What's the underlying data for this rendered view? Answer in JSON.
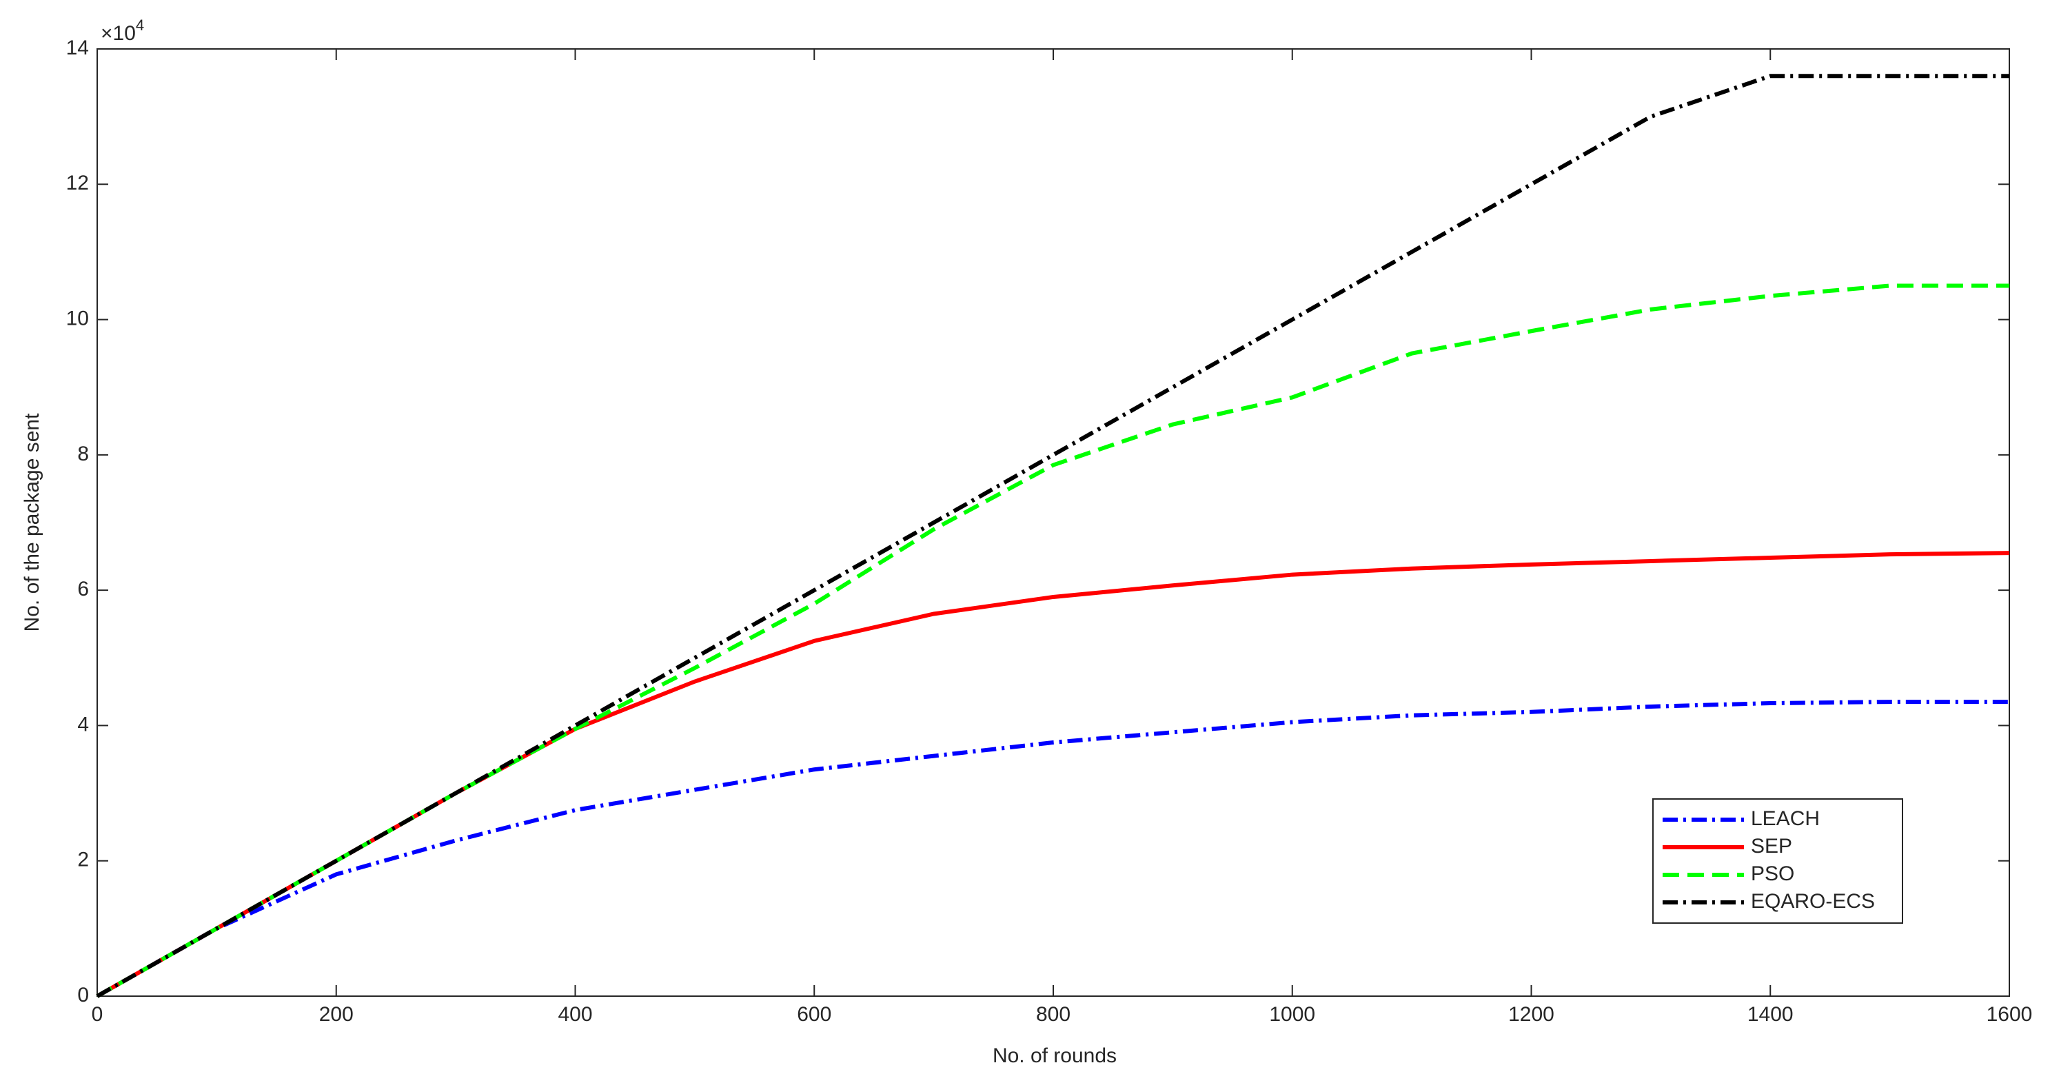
{
  "chart_data": {
    "type": "line",
    "x_label": "No. of rounds",
    "y_label": "No. of the package sent",
    "y_multiplier": {
      "base": "×10",
      "exponent": "4"
    },
    "x": [
      0,
      100,
      200,
      300,
      400,
      500,
      600,
      700,
      800,
      900,
      1000,
      1100,
      1200,
      1300,
      1400,
      1500,
      1600
    ],
    "series": [
      {
        "name": "LEACH",
        "color": "#0000ff",
        "dash": "dashdot",
        "values": [
          0,
          10000,
          18000,
          23000,
          27500,
          30500,
          33500,
          35500,
          37500,
          39000,
          40500,
          41500,
          42000,
          42800,
          43300,
          43500,
          43500
        ]
      },
      {
        "name": "SEP",
        "color": "#ff0000",
        "dash": "solid",
        "values": [
          0,
          10000,
          20000,
          30000,
          39500,
          46500,
          52500,
          56500,
          59000,
          60700,
          62300,
          63200,
          63800,
          64300,
          64800,
          65300,
          65500
        ]
      },
      {
        "name": "PSO",
        "color": "#00ff00",
        "dash": "dashed",
        "values": [
          0,
          10000,
          20000,
          30000,
          39500,
          48500,
          58000,
          69000,
          78500,
          84500,
          88500,
          95000,
          98300,
          101500,
          103500,
          105000,
          105000
        ]
      },
      {
        "name": "EQARO-ECS",
        "color": "#000000",
        "dash": "dashdot",
        "values": [
          0,
          10000,
          20000,
          30000,
          40000,
          50000,
          60000,
          70000,
          80000,
          90000,
          100000,
          110000,
          120000,
          130000,
          136000,
          136000,
          136000
        ]
      }
    ],
    "xlim": [
      0,
      1600
    ],
    "xticks": [
      0,
      200,
      400,
      600,
      800,
      1000,
      1200,
      1400,
      1600
    ],
    "ylim": [
      0,
      140000
    ],
    "yticks": [
      {
        "value": 0,
        "label": "0"
      },
      {
        "value": 20000,
        "label": "2"
      },
      {
        "value": 40000,
        "label": "4"
      },
      {
        "value": 60000,
        "label": "6"
      },
      {
        "value": 80000,
        "label": "8"
      },
      {
        "value": 100000,
        "label": "10"
      },
      {
        "value": 120000,
        "label": "12"
      },
      {
        "value": 140000,
        "label": "14"
      }
    ],
    "grid": false,
    "legend": "lower right"
  }
}
